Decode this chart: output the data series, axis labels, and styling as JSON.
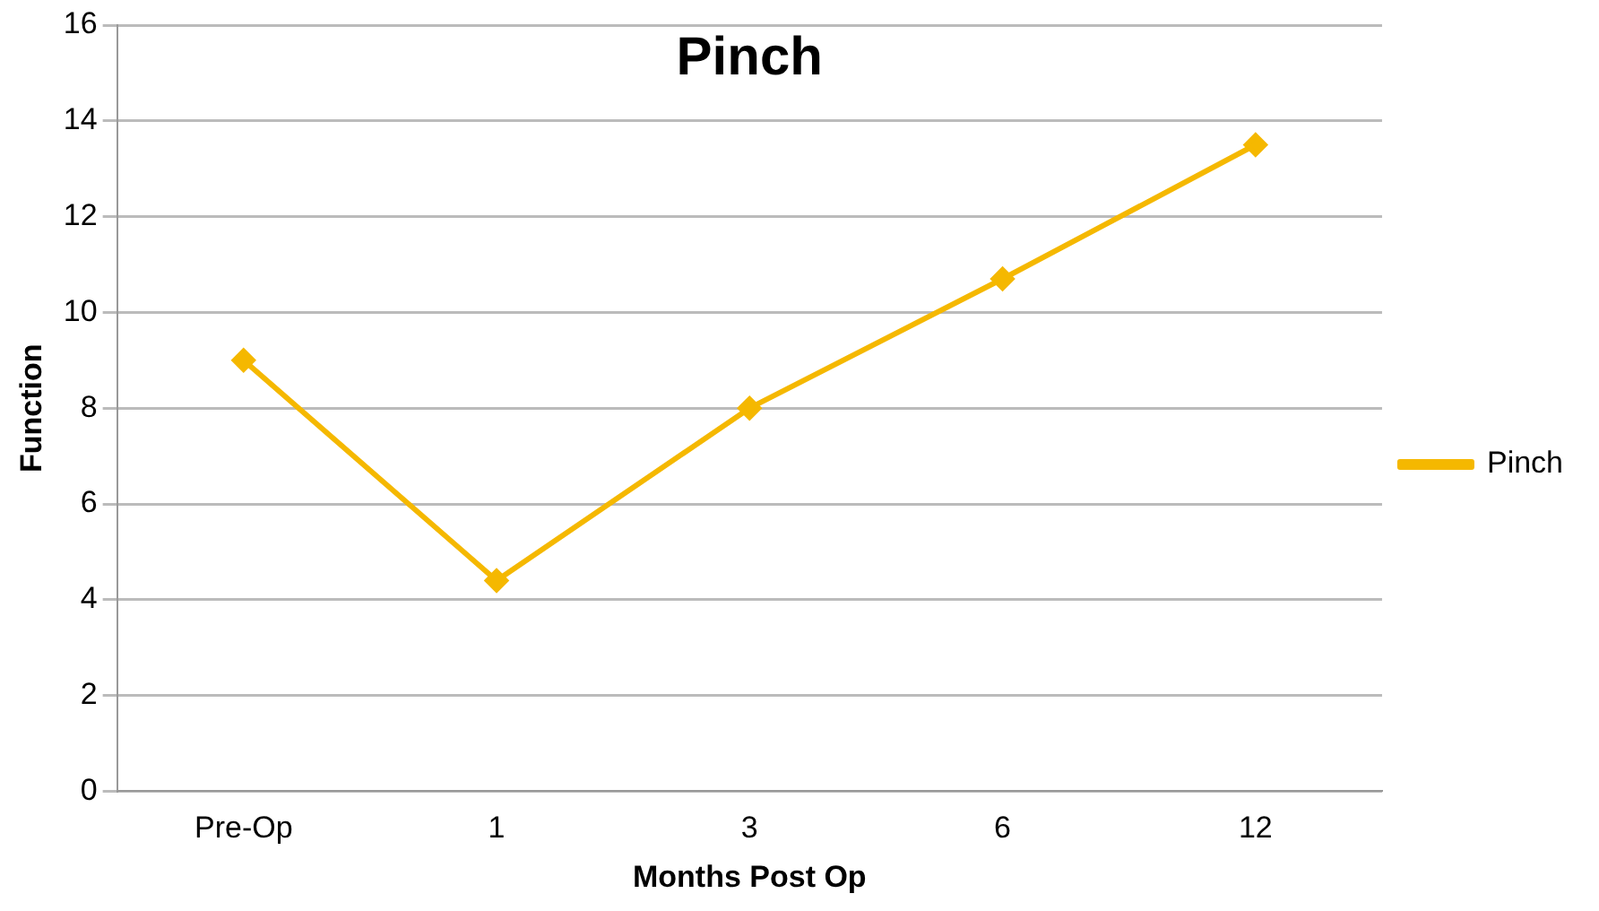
{
  "chart_data": {
    "type": "line",
    "title": "Pinch",
    "xlabel": "Months Post Op",
    "ylabel": "Function",
    "categories": [
      "Pre-Op",
      "1",
      "3",
      "6",
      "12"
    ],
    "series": [
      {
        "name": "Pinch",
        "color": "#f5b800",
        "values": [
          9,
          4.4,
          8,
          10.7,
          13.5
        ]
      }
    ],
    "ylim": [
      0,
      16
    ],
    "yticks": [
      0,
      2,
      4,
      6,
      8,
      10,
      12,
      14,
      16
    ],
    "grid": "y",
    "legend": "right",
    "marker": "diamond",
    "line_style": "solid"
  }
}
